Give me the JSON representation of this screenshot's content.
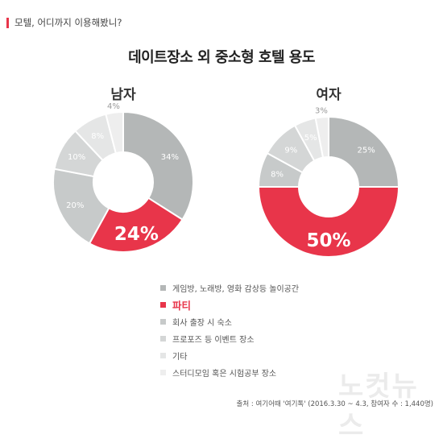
{
  "header": {
    "subtitle": "모텔, 어디까지 이용해봤니?",
    "title": "데이트장소 외 중소형 호텔 용도"
  },
  "colors": {
    "accent": "#e8354a"
  },
  "legend": [
    {
      "label": "게임방, 노래방, 영화 감상등 놀이공간",
      "color": "#b4b7b7",
      "highlight": false
    },
    {
      "label": "파티",
      "color": "#e8354a",
      "highlight": true
    },
    {
      "label": "회사 출장 시 숙소",
      "color": "#c7caca",
      "highlight": false
    },
    {
      "label": "프로포즈 등 이벤트 장소",
      "color": "#d4d6d6",
      "highlight": false
    },
    {
      "label": "기타",
      "color": "#e5e6e6",
      "highlight": false
    },
    {
      "label": "스터디모임 혹은 시험공부 장소",
      "color": "#eeeeee",
      "highlight": false
    }
  ],
  "chart_data": [
    {
      "type": "pie",
      "title": "남자",
      "slices": [
        {
          "label": "34%",
          "value": 34,
          "color": "#b4b7b7"
        },
        {
          "label": "24%",
          "value": 24,
          "color": "#e8354a",
          "highlight": true
        },
        {
          "label": "20%",
          "value": 20,
          "color": "#c7caca"
        },
        {
          "label": "10%",
          "value": 10,
          "color": "#d4d6d6"
        },
        {
          "label": "8%",
          "value": 8,
          "color": "#e5e6e6"
        },
        {
          "label": "4%",
          "value": 4,
          "color": "#eeeeee"
        }
      ]
    },
    {
      "type": "pie",
      "title": "여자",
      "slices": [
        {
          "label": "25%",
          "value": 25,
          "color": "#b4b7b7"
        },
        {
          "label": "50%",
          "value": 50,
          "color": "#e8354a",
          "highlight": true
        },
        {
          "label": "8%",
          "value": 8,
          "color": "#c7caca"
        },
        {
          "label": "9%",
          "value": 9,
          "color": "#d4d6d6"
        },
        {
          "label": "5%",
          "value": 5,
          "color": "#e5e6e6"
        },
        {
          "label": "3%",
          "value": 3,
          "color": "#eeeeee"
        }
      ]
    }
  ],
  "source": "출처 : 여기어때 '여기톡' (2016.3.30 ~ 4.3, 참여자 수 : 1,440명)",
  "watermark": "노컷뉴스"
}
